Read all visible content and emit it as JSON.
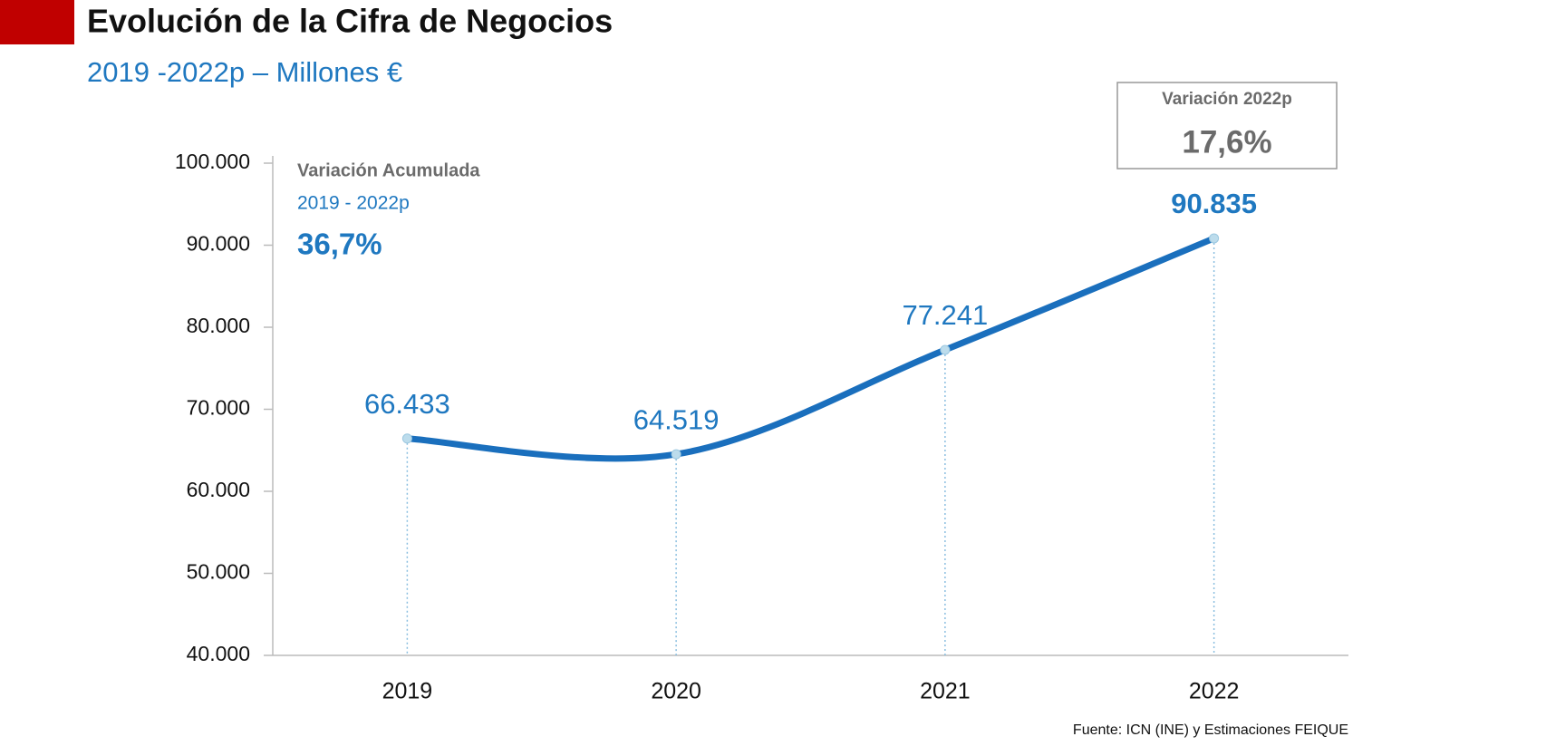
{
  "chart_data": {
    "type": "line",
    "title": "Evolución de la Cifra de Negocios",
    "subtitle": "2019 -2022p  – Millones €",
    "categories": [
      "2019",
      "2020",
      "2021",
      "2022"
    ],
    "values": [
      66433,
      64519,
      77241,
      90835
    ],
    "value_labels": [
      "66.433",
      "64.519",
      "77.241",
      "90.835"
    ],
    "color": "#1a6fbd",
    "ylim": [
      40000,
      100000
    ],
    "yticks": [
      {
        "value": 40000,
        "label": "40.000"
      },
      {
        "value": 50000,
        "label": "50.000"
      },
      {
        "value": 60000,
        "label": "60.000"
      },
      {
        "value": 70000,
        "label": "70.000"
      },
      {
        "value": 80000,
        "label": "80.000"
      },
      {
        "value": 90000,
        "label": "90.000"
      },
      {
        "value": 100000,
        "label": "100.000"
      }
    ],
    "grid": false,
    "annotations": [
      "Variación Acumulada",
      "2019 - 2022p",
      "36,7%",
      "Variación 2022p",
      "17,6%"
    ],
    "source": "Fuente: ICN (INE) y Estimaciones FEIQUE"
  }
}
